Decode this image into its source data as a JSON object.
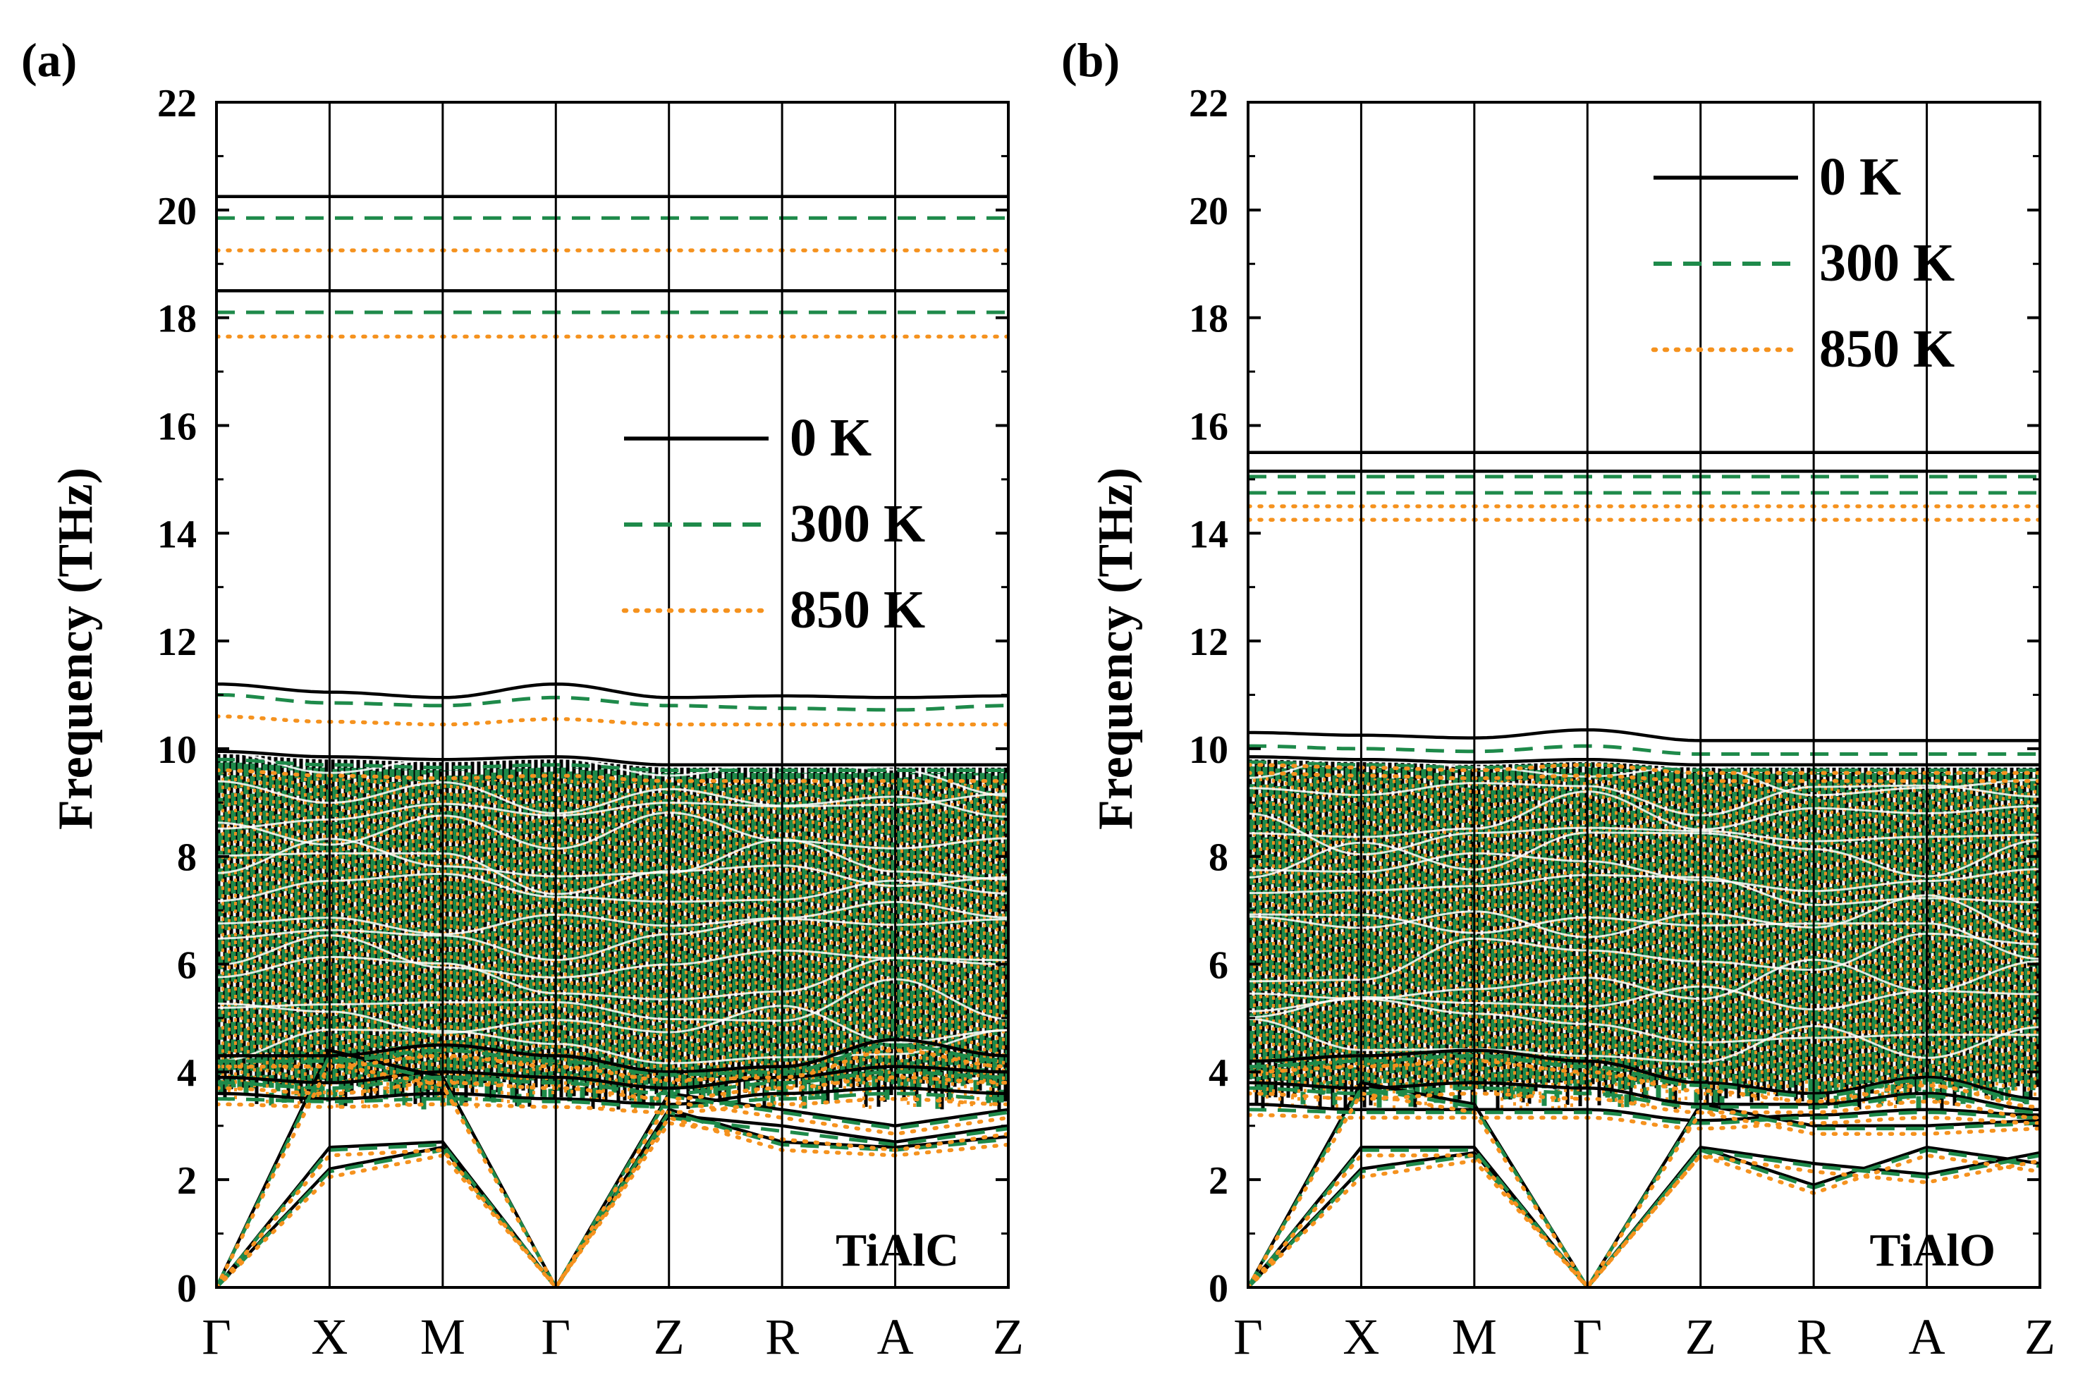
{
  "colors": {
    "k0": "#000000",
    "k300": "#1e8a4a",
    "k850": "#f5921e",
    "frame": "#000000",
    "background": "#ffffff"
  },
  "chart_data": [
    {
      "type": "line",
      "panel_label": "(a)",
      "material": "TiAlC",
      "ylabel": "Frequency (THz)",
      "ylim": [
        0,
        22
      ],
      "yticks": [
        0,
        2,
        4,
        6,
        8,
        10,
        12,
        14,
        16,
        18,
        20,
        22
      ],
      "kpath": [
        "Γ",
        "X",
        "M",
        "Γ",
        "Z",
        "R",
        "A",
        "Z"
      ],
      "legend": [
        "0 K",
        "300 K",
        "850 K"
      ],
      "legend_position": "middle-right",
      "series": [
        {
          "name": "0 K",
          "style": "solid",
          "flat_bands": [
            20.25,
            18.5
          ],
          "upper_band": [
            11.2,
            11.05,
            10.95,
            11.2,
            10.95,
            10.98,
            10.95,
            10.98
          ],
          "band_top": [
            9.95,
            9.85,
            9.8,
            9.85,
            9.7,
            9.7,
            9.7,
            9.7
          ],
          "acoustic": [
            [
              0,
              2.6,
              2.7,
              0,
              3.2,
              3.0,
              2.7,
              3.0
            ],
            [
              0,
              2.2,
              2.6,
              0,
              3.3,
              2.7,
              2.6,
              2.8
            ],
            [
              0,
              4.4,
              3.9,
              0,
              3.6,
              3.3,
              3.0,
              3.3
            ]
          ],
          "optical_low": [
            [
              4.3,
              4.3,
              4.5,
              4.3,
              4.0,
              4.1,
              4.6,
              4.3
            ],
            [
              3.9,
              3.8,
              4.0,
              3.9,
              3.7,
              3.9,
              4.1,
              4.0
            ],
            [
              3.6,
              3.5,
              3.6,
              3.5,
              3.4,
              3.6,
              3.7,
              3.6
            ]
          ]
        },
        {
          "name": "300 K",
          "style": "dashed",
          "flat_bands": [
            19.85,
            18.1
          ],
          "upper_band": [
            11.0,
            10.85,
            10.8,
            10.95,
            10.8,
            10.75,
            10.72,
            10.8
          ],
          "band_top": [
            9.8,
            9.7,
            9.65,
            9.7,
            9.6,
            9.6,
            9.6,
            9.6
          ],
          "acoustic": [
            [
              0,
              2.55,
              2.65,
              0,
              3.15,
              2.9,
              2.65,
              2.95
            ],
            [
              0,
              2.15,
              2.55,
              0,
              3.25,
              2.65,
              2.55,
              2.75
            ],
            [
              0,
              4.3,
              3.85,
              0,
              3.55,
              3.25,
              2.95,
              3.25
            ]
          ],
          "optical_low": [
            [
              4.2,
              4.2,
              4.4,
              4.2,
              3.95,
              4.0,
              4.5,
              4.2
            ],
            [
              3.8,
              3.7,
              3.9,
              3.8,
              3.6,
              3.8,
              4.0,
              3.9
            ],
            [
              3.5,
              3.45,
              3.5,
              3.45,
              3.35,
              3.5,
              3.6,
              3.5
            ]
          ]
        },
        {
          "name": "850 K",
          "style": "dotted",
          "flat_bands": [
            19.25,
            17.65
          ],
          "upper_band": [
            10.6,
            10.5,
            10.45,
            10.55,
            10.45,
            10.45,
            10.45,
            10.45
          ],
          "band_top": [
            9.6,
            9.5,
            9.45,
            9.5,
            9.4,
            9.4,
            9.4,
            9.4
          ],
          "acoustic": [
            [
              0,
              2.45,
              2.55,
              0,
              3.05,
              2.75,
              2.55,
              2.85
            ],
            [
              0,
              2.05,
              2.45,
              0,
              3.15,
              2.55,
              2.45,
              2.65
            ],
            [
              0,
              4.15,
              3.75,
              0,
              3.45,
              3.15,
              2.85,
              3.15
            ]
          ],
          "optical_low": [
            [
              4.1,
              4.1,
              4.3,
              4.1,
              3.85,
              3.9,
              4.4,
              4.1
            ],
            [
              3.7,
              3.6,
              3.8,
              3.7,
              3.5,
              3.7,
              3.9,
              3.8
            ],
            [
              3.4,
              3.35,
              3.4,
              3.35,
              3.25,
              3.4,
              3.5,
              3.4
            ]
          ]
        }
      ]
    },
    {
      "type": "line",
      "panel_label": "(b)",
      "material": "TiAlO",
      "ylabel": "Frequency (THz)",
      "ylim": [
        0,
        22
      ],
      "yticks": [
        0,
        2,
        4,
        6,
        8,
        10,
        12,
        14,
        16,
        18,
        20,
        22
      ],
      "kpath": [
        "Γ",
        "X",
        "M",
        "Γ",
        "Z",
        "R",
        "A",
        "Z"
      ],
      "legend": [
        "0 K",
        "300 K",
        "850 K"
      ],
      "legend_position": "top-right",
      "series": [
        {
          "name": "0 K",
          "style": "solid",
          "flat_bands": [
            15.5,
            15.15
          ],
          "upper_band": [
            10.3,
            10.25,
            10.2,
            10.35,
            10.15,
            10.15,
            10.15,
            10.15
          ],
          "band_top": [
            9.85,
            9.8,
            9.75,
            9.8,
            9.7,
            9.7,
            9.7,
            9.7
          ],
          "acoustic": [
            [
              0,
              2.6,
              2.6,
              0,
              2.6,
              2.3,
              2.1,
              2.5
            ],
            [
              0,
              2.2,
              2.5,
              0,
              2.6,
              1.9,
              2.6,
              2.3
            ],
            [
              0,
              3.8,
              3.4,
              0,
              3.4,
              3.0,
              3.0,
              3.1
            ]
          ],
          "optical_low": [
            [
              4.2,
              4.3,
              4.4,
              4.2,
              3.8,
              3.6,
              3.9,
              3.5
            ],
            [
              3.8,
              3.7,
              3.8,
              3.7,
              3.4,
              3.4,
              3.6,
              3.3
            ],
            [
              3.4,
              3.3,
              3.3,
              3.3,
              3.1,
              3.2,
              3.3,
              3.2
            ]
          ]
        },
        {
          "name": "300 K",
          "style": "dashed",
          "flat_bands": [
            15.05,
            14.75
          ],
          "upper_band": [
            10.05,
            10.0,
            9.95,
            10.05,
            9.9,
            9.9,
            9.9,
            9.9
          ],
          "band_top": [
            9.75,
            9.7,
            9.65,
            9.7,
            9.6,
            9.6,
            9.6,
            9.6
          ],
          "acoustic": [
            [
              0,
              2.55,
              2.55,
              0,
              2.55,
              2.25,
              2.05,
              2.45
            ],
            [
              0,
              2.15,
              2.45,
              0,
              2.55,
              1.85,
              2.55,
              2.25
            ],
            [
              0,
              3.7,
              3.35,
              0,
              3.35,
              2.95,
              2.95,
              3.05
            ]
          ],
          "optical_low": [
            [
              4.1,
              4.2,
              4.3,
              4.1,
              3.75,
              3.55,
              3.85,
              3.45
            ],
            [
              3.7,
              3.6,
              3.7,
              3.6,
              3.35,
              3.35,
              3.55,
              3.25
            ],
            [
              3.3,
              3.25,
              3.25,
              3.25,
              3.05,
              3.15,
              3.25,
              3.15
            ]
          ]
        },
        {
          "name": "850 K",
          "style": "dotted",
          "flat_bands": [
            14.5,
            14.25
          ],
          "upper_band": [
            9.7,
            9.65,
            9.6,
            9.7,
            9.55,
            9.55,
            9.55,
            9.55
          ],
          "band_top": [
            9.55,
            9.5,
            9.45,
            9.5,
            9.4,
            9.4,
            9.4,
            9.4
          ],
          "acoustic": [
            [
              0,
              2.45,
              2.45,
              0,
              2.45,
              2.15,
              1.95,
              2.35
            ],
            [
              0,
              2.05,
              2.35,
              0,
              2.45,
              1.75,
              2.45,
              2.15
            ],
            [
              0,
              3.6,
              3.25,
              0,
              3.25,
              2.85,
              2.85,
              2.95
            ]
          ],
          "optical_low": [
            [
              4.0,
              4.1,
              4.2,
              4.0,
              3.65,
              3.45,
              3.75,
              3.35
            ],
            [
              3.6,
              3.5,
              3.6,
              3.5,
              3.25,
              3.25,
              3.45,
              3.15
            ],
            [
              3.2,
              3.15,
              3.15,
              3.15,
              2.95,
              3.05,
              3.15,
              3.05
            ]
          ]
        }
      ]
    }
  ]
}
